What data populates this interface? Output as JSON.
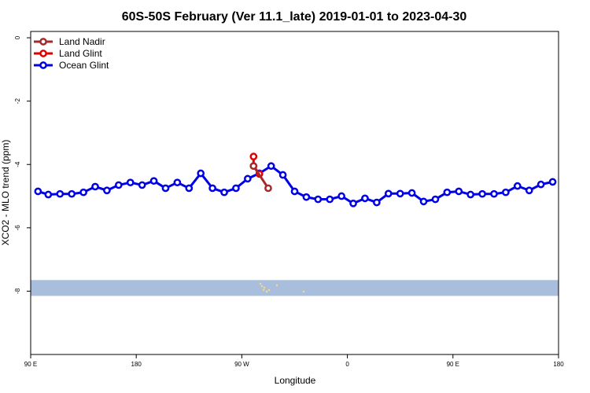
{
  "chart_data": {
    "type": "line",
    "title": "60S-50S February (Ver 11.1_late)   2019-01-01 to 2023-04-30",
    "xlabel": "Longitude",
    "ylabel": "XCO2 - MLO trend (ppm)",
    "xlim": [
      90,
      450
    ],
    "ylim": [
      -10,
      0.2
    ],
    "x_ticks": [
      {
        "value": 90,
        "label": "90 E"
      },
      {
        "value": 162,
        "label": "180"
      },
      {
        "value": 234,
        "label": "90 W"
      },
      {
        "value": 306,
        "label": "0"
      },
      {
        "value": 378,
        "label": "90 E"
      },
      {
        "value": 450,
        "label": "180"
      }
    ],
    "y_ticks": [
      {
        "value": 0,
        "label": "0"
      },
      {
        "value": -2,
        "label": "-2"
      },
      {
        "value": -4,
        "label": "-4"
      },
      {
        "value": -6,
        "label": "-6"
      },
      {
        "value": -8,
        "label": "-8"
      }
    ],
    "legend_position": "top-left",
    "grid": false,
    "map_band": {
      "ymin": -8.15,
      "ymax": -7.65,
      "color": "#a8bedc",
      "land_color": "#f2d98a"
    },
    "series": [
      {
        "name": "Land Nadir",
        "color": "#a52a2a",
        "x": [
          242,
          252
        ],
        "y": [
          -4.05,
          -4.75
        ]
      },
      {
        "name": "Land Glint",
        "color": "#e00000",
        "x": [
          242,
          242,
          246
        ],
        "y": [
          -3.75,
          -4.05,
          -4.3
        ]
      },
      {
        "name": "Ocean Glint",
        "color": "#0000e6",
        "x": [
          95,
          102,
          110,
          118,
          126,
          134,
          142,
          150,
          158,
          166,
          174,
          182,
          190,
          198,
          206,
          214,
          222,
          230,
          238,
          246,
          254,
          262,
          270,
          278,
          286,
          294,
          302,
          310,
          318,
          326,
          334,
          342,
          350,
          358,
          366,
          374,
          382,
          390,
          398,
          406,
          414,
          422,
          430,
          438,
          446
        ],
        "y": [
          -4.85,
          -4.95,
          -4.93,
          -4.93,
          -4.88,
          -4.7,
          -4.82,
          -4.65,
          -4.57,
          -4.65,
          -4.52,
          -4.75,
          -4.57,
          -4.75,
          -4.28,
          -4.75,
          -4.88,
          -4.75,
          -4.45,
          -4.28,
          -4.05,
          -4.33,
          -4.85,
          -5.03,
          -5.1,
          -5.1,
          -5.0,
          -5.23,
          -5.07,
          -5.2,
          -4.92,
          -4.92,
          -4.9,
          -5.17,
          -5.1,
          -4.88,
          -4.85,
          -4.95,
          -4.93,
          -4.93,
          -4.88,
          -4.68,
          -4.82,
          -4.63,
          -4.55
        ]
      }
    ]
  }
}
